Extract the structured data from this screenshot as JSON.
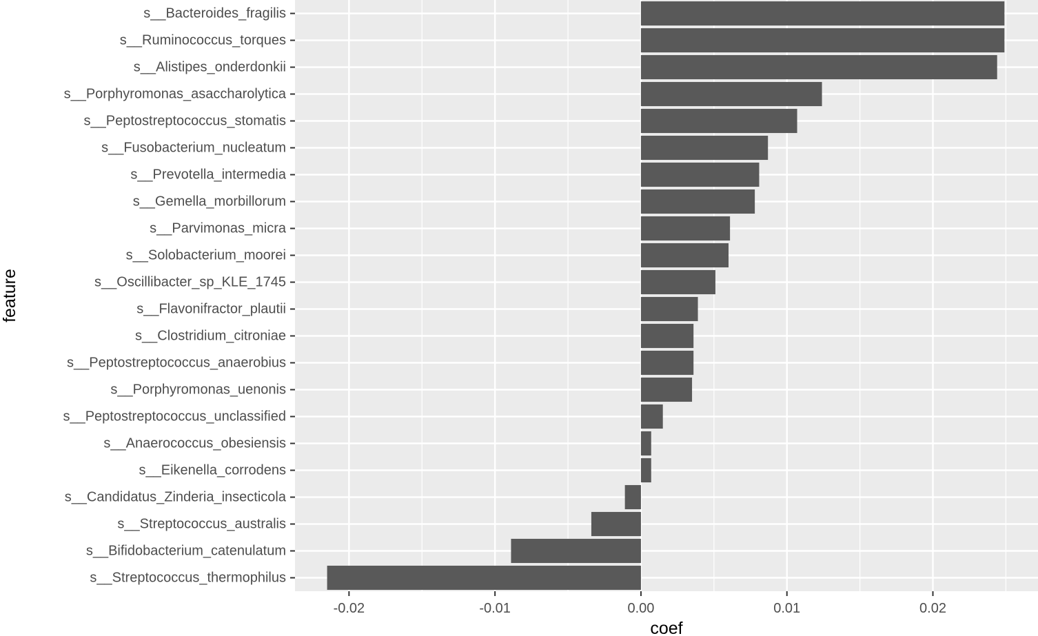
{
  "chart_data": {
    "type": "bar",
    "orientation": "horizontal",
    "xlabel": "coef",
    "ylabel": "feature",
    "xlim": [
      -0.0237,
      0.0272
    ],
    "x_ticks": [
      -0.02,
      -0.01,
      0.0,
      0.01,
      0.02
    ],
    "x_tick_labels": [
      "-0.02",
      "-0.01",
      "0.00",
      "0.01",
      "0.02"
    ],
    "grid": true,
    "legend": "none",
    "colors": {
      "bar": "#595959",
      "panel": "#ebebeb",
      "grid": "#ffffff",
      "tick_text": "#4d4d4d",
      "axis_title": "#000000"
    },
    "categories": [
      "s__Bacteroides_fragilis",
      "s__Ruminococcus_torques",
      "s__Alistipes_onderdonkii",
      "s__Porphyromonas_asaccharolytica",
      "s__Peptostreptococcus_stomatis",
      "s__Fusobacterium_nucleatum",
      "s__Prevotella_intermedia",
      "s__Gemella_morbillorum",
      "s__Parvimonas_micra",
      "s__Solobacterium_moorei",
      "s__Oscillibacter_sp_KLE_1745",
      "s__Flavonifractor_plautii",
      "s__Clostridium_citroniae",
      "s__Peptostreptococcus_anaerobius",
      "s__Porphyromonas_uenonis",
      "s__Peptostreptococcus_unclassified",
      "s__Anaerococcus_obesiensis",
      "s__Eikenella_corrodens",
      "s__Candidatus_Zinderia_insecticola",
      "s__Streptococcus_australis",
      "s__Bifidobacterium_catenulatum",
      "s__Streptococcus_thermophilus"
    ],
    "values": [
      0.0249,
      0.0249,
      0.0244,
      0.0124,
      0.0107,
      0.0087,
      0.0081,
      0.0078,
      0.0061,
      0.006,
      0.0051,
      0.0039,
      0.0036,
      0.0036,
      0.0035,
      0.0015,
      0.0007,
      0.0007,
      -0.0011,
      -0.0034,
      -0.0089,
      -0.0215
    ]
  }
}
